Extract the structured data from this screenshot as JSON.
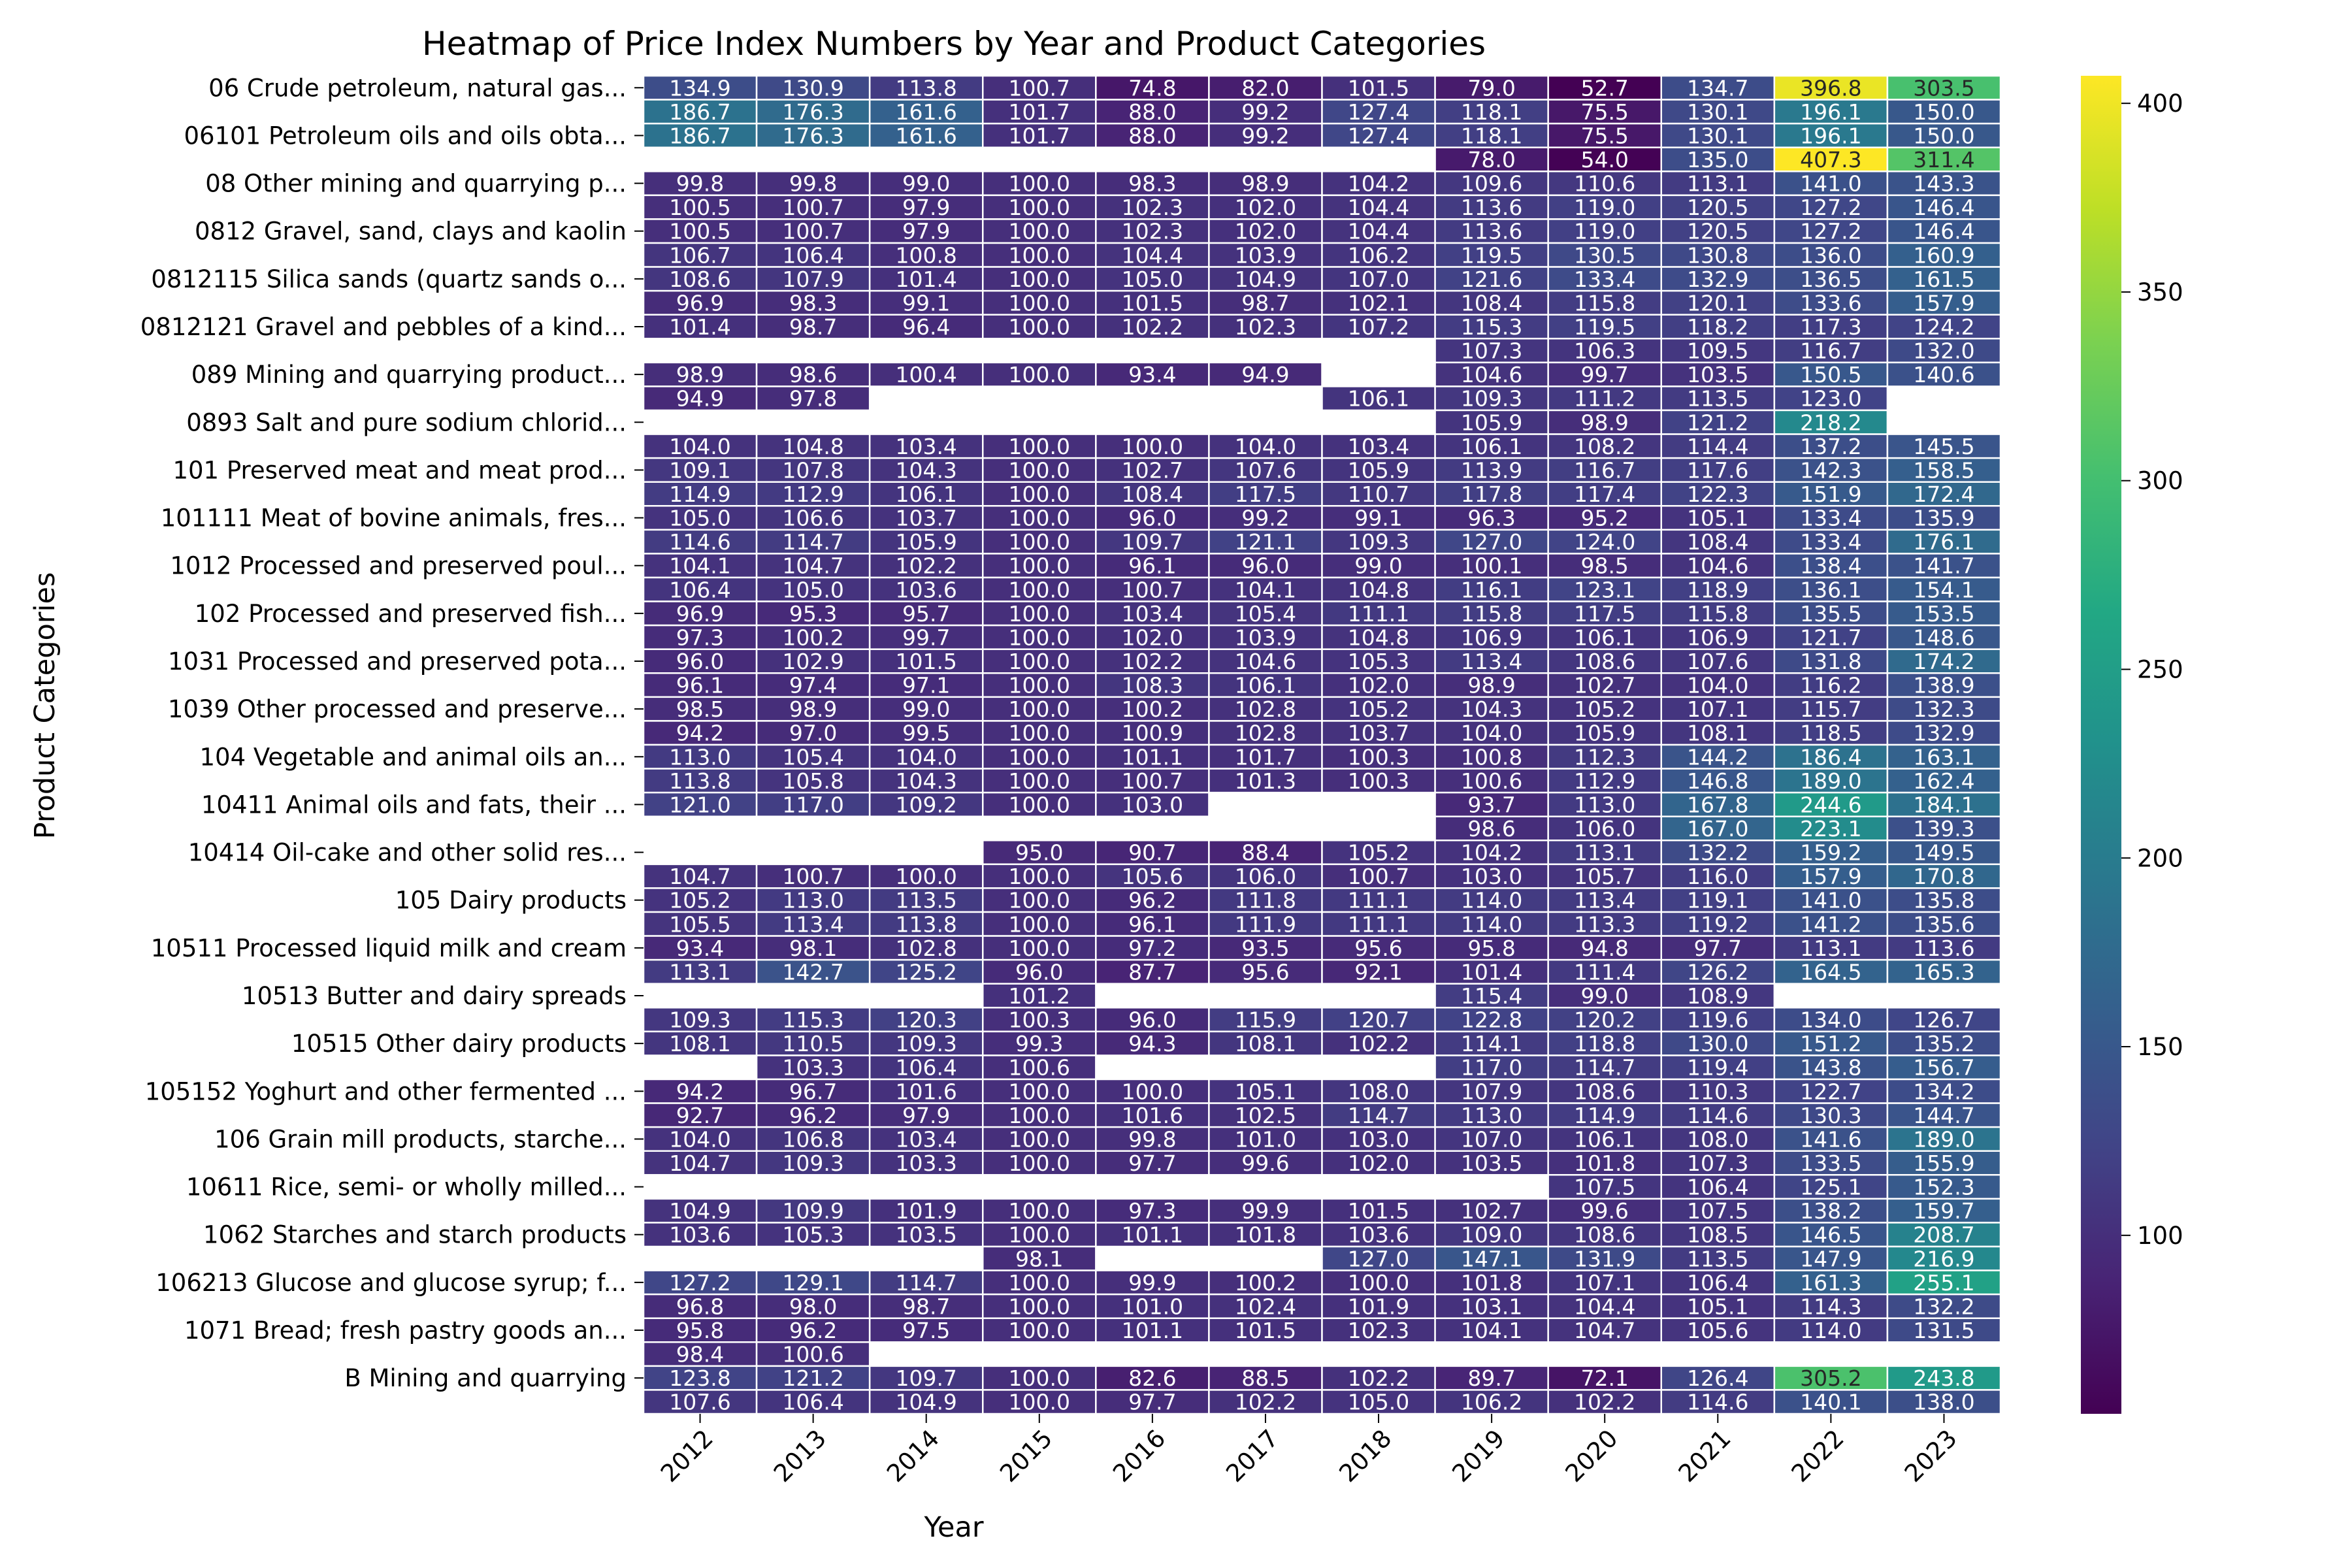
{
  "chart_data": {
    "type": "heatmap",
    "title": "Heatmap of Price Index Numbers by Year and Product Categories",
    "xlabel": "Year",
    "ylabel": "Product Categories",
    "colormap": "viridis",
    "value_range": [
      52.7,
      407.3
    ],
    "colorbar_ticks": [
      100,
      150,
      200,
      250,
      300,
      350,
      400
    ],
    "x": [
      "2012",
      "2013",
      "2014",
      "2015",
      "2016",
      "2017",
      "2018",
      "2019",
      "2020",
      "2021",
      "2022",
      "2023"
    ],
    "rows": [
      {
        "label": "06 Crude petroleum, natural gas...",
        "values": [
          134.9,
          130.9,
          113.8,
          100.7,
          74.8,
          82.0,
          101.5,
          79.0,
          52.7,
          134.7,
          396.8,
          303.5
        ]
      },
      {
        "label": "",
        "values": [
          186.7,
          176.3,
          161.6,
          101.7,
          88.0,
          99.2,
          127.4,
          118.1,
          75.5,
          130.1,
          196.1,
          150.0
        ]
      },
      {
        "label": "06101 Petroleum oils and oils obta...",
        "values": [
          186.7,
          176.3,
          161.6,
          101.7,
          88.0,
          99.2,
          127.4,
          118.1,
          75.5,
          130.1,
          196.1,
          150.0
        ]
      },
      {
        "label": "",
        "values": [
          null,
          null,
          null,
          null,
          null,
          null,
          null,
          78.0,
          54.0,
          135.0,
          407.3,
          311.4
        ]
      },
      {
        "label": "08 Other mining and quarrying p...",
        "values": [
          99.8,
          99.8,
          99.0,
          100.0,
          98.3,
          98.9,
          104.2,
          109.6,
          110.6,
          113.1,
          141.0,
          143.3
        ]
      },
      {
        "label": "",
        "values": [
          100.5,
          100.7,
          97.9,
          100.0,
          102.3,
          102.0,
          104.4,
          113.6,
          119.0,
          120.5,
          127.2,
          146.4
        ]
      },
      {
        "label": "0812 Gravel, sand, clays and kaolin",
        "values": [
          100.5,
          100.7,
          97.9,
          100.0,
          102.3,
          102.0,
          104.4,
          113.6,
          119.0,
          120.5,
          127.2,
          146.4
        ]
      },
      {
        "label": "",
        "values": [
          106.7,
          106.4,
          100.8,
          100.0,
          104.4,
          103.9,
          106.2,
          119.5,
          130.5,
          130.8,
          136.0,
          160.9
        ]
      },
      {
        "label": "0812115 Silica sands (quartz sands o...",
        "values": [
          108.6,
          107.9,
          101.4,
          100.0,
          105.0,
          104.9,
          107.0,
          121.6,
          133.4,
          132.9,
          136.5,
          161.5
        ]
      },
      {
        "label": "",
        "values": [
          96.9,
          98.3,
          99.1,
          100.0,
          101.5,
          98.7,
          102.1,
          108.4,
          115.8,
          120.1,
          133.6,
          157.9
        ]
      },
      {
        "label": "0812121 Gravel and pebbles of a kind...",
        "values": [
          101.4,
          98.7,
          96.4,
          100.0,
          102.2,
          102.3,
          107.2,
          115.3,
          119.5,
          118.2,
          117.3,
          124.2
        ]
      },
      {
        "label": "",
        "values": [
          null,
          null,
          null,
          null,
          null,
          null,
          null,
          107.3,
          106.3,
          109.5,
          116.7,
          132.0
        ]
      },
      {
        "label": "089 Mining and quarrying product...",
        "values": [
          98.9,
          98.6,
          100.4,
          100.0,
          93.4,
          94.9,
          null,
          104.6,
          99.7,
          103.5,
          150.5,
          140.6
        ]
      },
      {
        "label": "",
        "values": [
          94.9,
          97.8,
          null,
          null,
          null,
          null,
          106.1,
          109.3,
          111.2,
          113.5,
          123.0,
          null
        ]
      },
      {
        "label": "0893 Salt and pure sodium chlorid...",
        "values": [
          null,
          null,
          null,
          null,
          null,
          null,
          null,
          105.9,
          98.9,
          121.2,
          218.2,
          null
        ]
      },
      {
        "label": "",
        "values": [
          104.0,
          104.8,
          103.4,
          100.0,
          100.0,
          104.0,
          103.4,
          106.1,
          108.2,
          114.4,
          137.2,
          145.5
        ]
      },
      {
        "label": "101 Preserved meat and meat prod...",
        "values": [
          109.1,
          107.8,
          104.3,
          100.0,
          102.7,
          107.6,
          105.9,
          113.9,
          116.7,
          117.6,
          142.3,
          158.5
        ]
      },
      {
        "label": "",
        "values": [
          114.9,
          112.9,
          106.1,
          100.0,
          108.4,
          117.5,
          110.7,
          117.8,
          117.4,
          122.3,
          151.9,
          172.4
        ]
      },
      {
        "label": "101111 Meat of bovine animals, fres...",
        "values": [
          105.0,
          106.6,
          103.7,
          100.0,
          96.0,
          99.2,
          99.1,
          96.3,
          95.2,
          105.1,
          133.4,
          135.9
        ]
      },
      {
        "label": "",
        "values": [
          114.6,
          114.7,
          105.9,
          100.0,
          109.7,
          121.1,
          109.3,
          127.0,
          124.0,
          108.4,
          133.4,
          176.1
        ]
      },
      {
        "label": "1012 Processed and preserved poul...",
        "values": [
          104.1,
          104.7,
          102.2,
          100.0,
          96.1,
          96.0,
          99.0,
          100.1,
          98.5,
          104.6,
          138.4,
          141.7
        ]
      },
      {
        "label": "",
        "values": [
          106.4,
          105.0,
          103.6,
          100.0,
          100.7,
          104.1,
          104.8,
          116.1,
          123.1,
          118.9,
          136.1,
          154.1
        ]
      },
      {
        "label": "102 Processed and preserved fish...",
        "values": [
          96.9,
          95.3,
          95.7,
          100.0,
          103.4,
          105.4,
          111.1,
          115.8,
          117.5,
          115.8,
          135.5,
          153.5
        ]
      },
      {
        "label": "",
        "values": [
          97.3,
          100.2,
          99.7,
          100.0,
          102.0,
          103.9,
          104.8,
          106.9,
          106.1,
          106.9,
          121.7,
          148.6
        ]
      },
      {
        "label": "1031 Processed and preserved pota...",
        "values": [
          96.0,
          102.9,
          101.5,
          100.0,
          102.2,
          104.6,
          105.3,
          113.4,
          108.6,
          107.6,
          131.8,
          174.2
        ]
      },
      {
        "label": "",
        "values": [
          96.1,
          97.4,
          97.1,
          100.0,
          108.3,
          106.1,
          102.0,
          98.9,
          102.7,
          104.0,
          116.2,
          138.9
        ]
      },
      {
        "label": "1039 Other processed and preserve...",
        "values": [
          98.5,
          98.9,
          99.0,
          100.0,
          100.2,
          102.8,
          105.2,
          104.3,
          105.2,
          107.1,
          115.7,
          132.3
        ]
      },
      {
        "label": "",
        "values": [
          94.2,
          97.0,
          99.5,
          100.0,
          100.9,
          102.8,
          103.7,
          104.0,
          105.9,
          108.1,
          118.5,
          132.9
        ]
      },
      {
        "label": "104 Vegetable and animal oils an...",
        "values": [
          113.0,
          105.4,
          104.0,
          100.0,
          101.1,
          101.7,
          100.3,
          100.8,
          112.3,
          144.2,
          186.4,
          163.1
        ]
      },
      {
        "label": "",
        "values": [
          113.8,
          105.8,
          104.3,
          100.0,
          100.7,
          101.3,
          100.3,
          100.6,
          112.9,
          146.8,
          189.0,
          162.4
        ]
      },
      {
        "label": "10411 Animal oils and fats, their ...",
        "values": [
          121.0,
          117.0,
          109.2,
          100.0,
          103.0,
          null,
          null,
          93.7,
          113.0,
          167.8,
          244.6,
          184.1
        ]
      },
      {
        "label": "",
        "values": [
          null,
          null,
          null,
          null,
          null,
          null,
          null,
          98.6,
          106.0,
          167.0,
          223.1,
          139.3
        ]
      },
      {
        "label": "10414 Oil-cake and other solid res...",
        "values": [
          null,
          null,
          null,
          95.0,
          90.7,
          88.4,
          105.2,
          104.2,
          113.1,
          132.2,
          159.2,
          149.5
        ]
      },
      {
        "label": "",
        "values": [
          104.7,
          100.7,
          100.0,
          100.0,
          105.6,
          106.0,
          100.7,
          103.0,
          105.7,
          116.0,
          157.9,
          170.8
        ]
      },
      {
        "label": "105 Dairy products",
        "values": [
          105.2,
          113.0,
          113.5,
          100.0,
          96.2,
          111.8,
          111.1,
          114.0,
          113.4,
          119.1,
          141.0,
          135.8
        ]
      },
      {
        "label": "",
        "values": [
          105.5,
          113.4,
          113.8,
          100.0,
          96.1,
          111.9,
          111.1,
          114.0,
          113.3,
          119.2,
          141.2,
          135.6
        ]
      },
      {
        "label": "10511 Processed liquid milk and cream",
        "values": [
          93.4,
          98.1,
          102.8,
          100.0,
          97.2,
          93.5,
          95.6,
          95.8,
          94.8,
          97.7,
          113.1,
          113.6
        ]
      },
      {
        "label": "",
        "values": [
          113.1,
          142.7,
          125.2,
          96.0,
          87.7,
          95.6,
          92.1,
          101.4,
          111.4,
          126.2,
          164.5,
          165.3
        ]
      },
      {
        "label": "10513 Butter and dairy spreads",
        "values": [
          null,
          null,
          null,
          101.2,
          null,
          null,
          null,
          115.4,
          99.0,
          108.9,
          null,
          null
        ]
      },
      {
        "label": "",
        "values": [
          109.3,
          115.3,
          120.3,
          100.3,
          96.0,
          115.9,
          120.7,
          122.8,
          120.2,
          119.6,
          134.0,
          126.7
        ]
      },
      {
        "label": "10515 Other dairy products",
        "values": [
          108.1,
          110.5,
          109.3,
          99.3,
          94.3,
          108.1,
          102.2,
          114.1,
          118.8,
          130.0,
          151.2,
          135.2
        ]
      },
      {
        "label": "",
        "values": [
          null,
          103.3,
          106.4,
          100.6,
          null,
          null,
          null,
          117.0,
          114.7,
          119.4,
          143.8,
          156.7
        ]
      },
      {
        "label": "105152 Yoghurt and other fermented ...",
        "values": [
          94.2,
          96.7,
          101.6,
          100.0,
          100.0,
          105.1,
          108.0,
          107.9,
          108.6,
          110.3,
          122.7,
          134.2
        ]
      },
      {
        "label": "",
        "values": [
          92.7,
          96.2,
          97.9,
          100.0,
          101.6,
          102.5,
          114.7,
          113.0,
          114.9,
          114.6,
          130.3,
          144.7
        ]
      },
      {
        "label": "106 Grain mill products, starche...",
        "values": [
          104.0,
          106.8,
          103.4,
          100.0,
          99.8,
          101.0,
          103.0,
          107.0,
          106.1,
          108.0,
          141.6,
          189.0
        ]
      },
      {
        "label": "",
        "values": [
          104.7,
          109.3,
          103.3,
          100.0,
          97.7,
          99.6,
          102.0,
          103.5,
          101.8,
          107.3,
          133.5,
          155.9
        ]
      },
      {
        "label": "10611 Rice, semi- or wholly milled...",
        "values": [
          null,
          null,
          null,
          null,
          null,
          null,
          null,
          null,
          107.5,
          106.4,
          125.1,
          152.3
        ]
      },
      {
        "label": "",
        "values": [
          104.9,
          109.9,
          101.9,
          100.0,
          97.3,
          99.9,
          101.5,
          102.7,
          99.6,
          107.5,
          138.2,
          159.7
        ]
      },
      {
        "label": "1062 Starches and starch products",
        "values": [
          103.6,
          105.3,
          103.5,
          100.0,
          101.1,
          101.8,
          103.6,
          109.0,
          108.6,
          108.5,
          146.5,
          208.7
        ]
      },
      {
        "label": "",
        "values": [
          null,
          null,
          null,
          98.1,
          null,
          null,
          127.0,
          147.1,
          131.9,
          113.5,
          147.9,
          216.9
        ]
      },
      {
        "label": "106213 Glucose and glucose syrup; f...",
        "values": [
          127.2,
          129.1,
          114.7,
          100.0,
          99.9,
          100.2,
          100.0,
          101.8,
          107.1,
          106.4,
          161.3,
          255.1
        ]
      },
      {
        "label": "",
        "values": [
          96.8,
          98.0,
          98.7,
          100.0,
          101.0,
          102.4,
          101.9,
          103.1,
          104.4,
          105.1,
          114.3,
          132.2
        ]
      },
      {
        "label": "1071 Bread; fresh pastry goods an...",
        "values": [
          95.8,
          96.2,
          97.5,
          100.0,
          101.1,
          101.5,
          102.3,
          104.1,
          104.7,
          105.6,
          114.0,
          131.5
        ]
      },
      {
        "label": "",
        "values": [
          98.4,
          100.6,
          null,
          null,
          null,
          null,
          null,
          null,
          null,
          null,
          null,
          null
        ]
      },
      {
        "label": "B Mining and quarrying",
        "values": [
          123.8,
          121.2,
          109.7,
          100.0,
          82.6,
          88.5,
          102.2,
          89.7,
          72.1,
          126.4,
          305.2,
          243.8
        ]
      },
      {
        "label": "",
        "values": [
          107.6,
          106.4,
          104.9,
          100.0,
          97.7,
          102.2,
          105.0,
          106.2,
          102.2,
          114.6,
          140.1,
          138.0
        ]
      }
    ]
  }
}
